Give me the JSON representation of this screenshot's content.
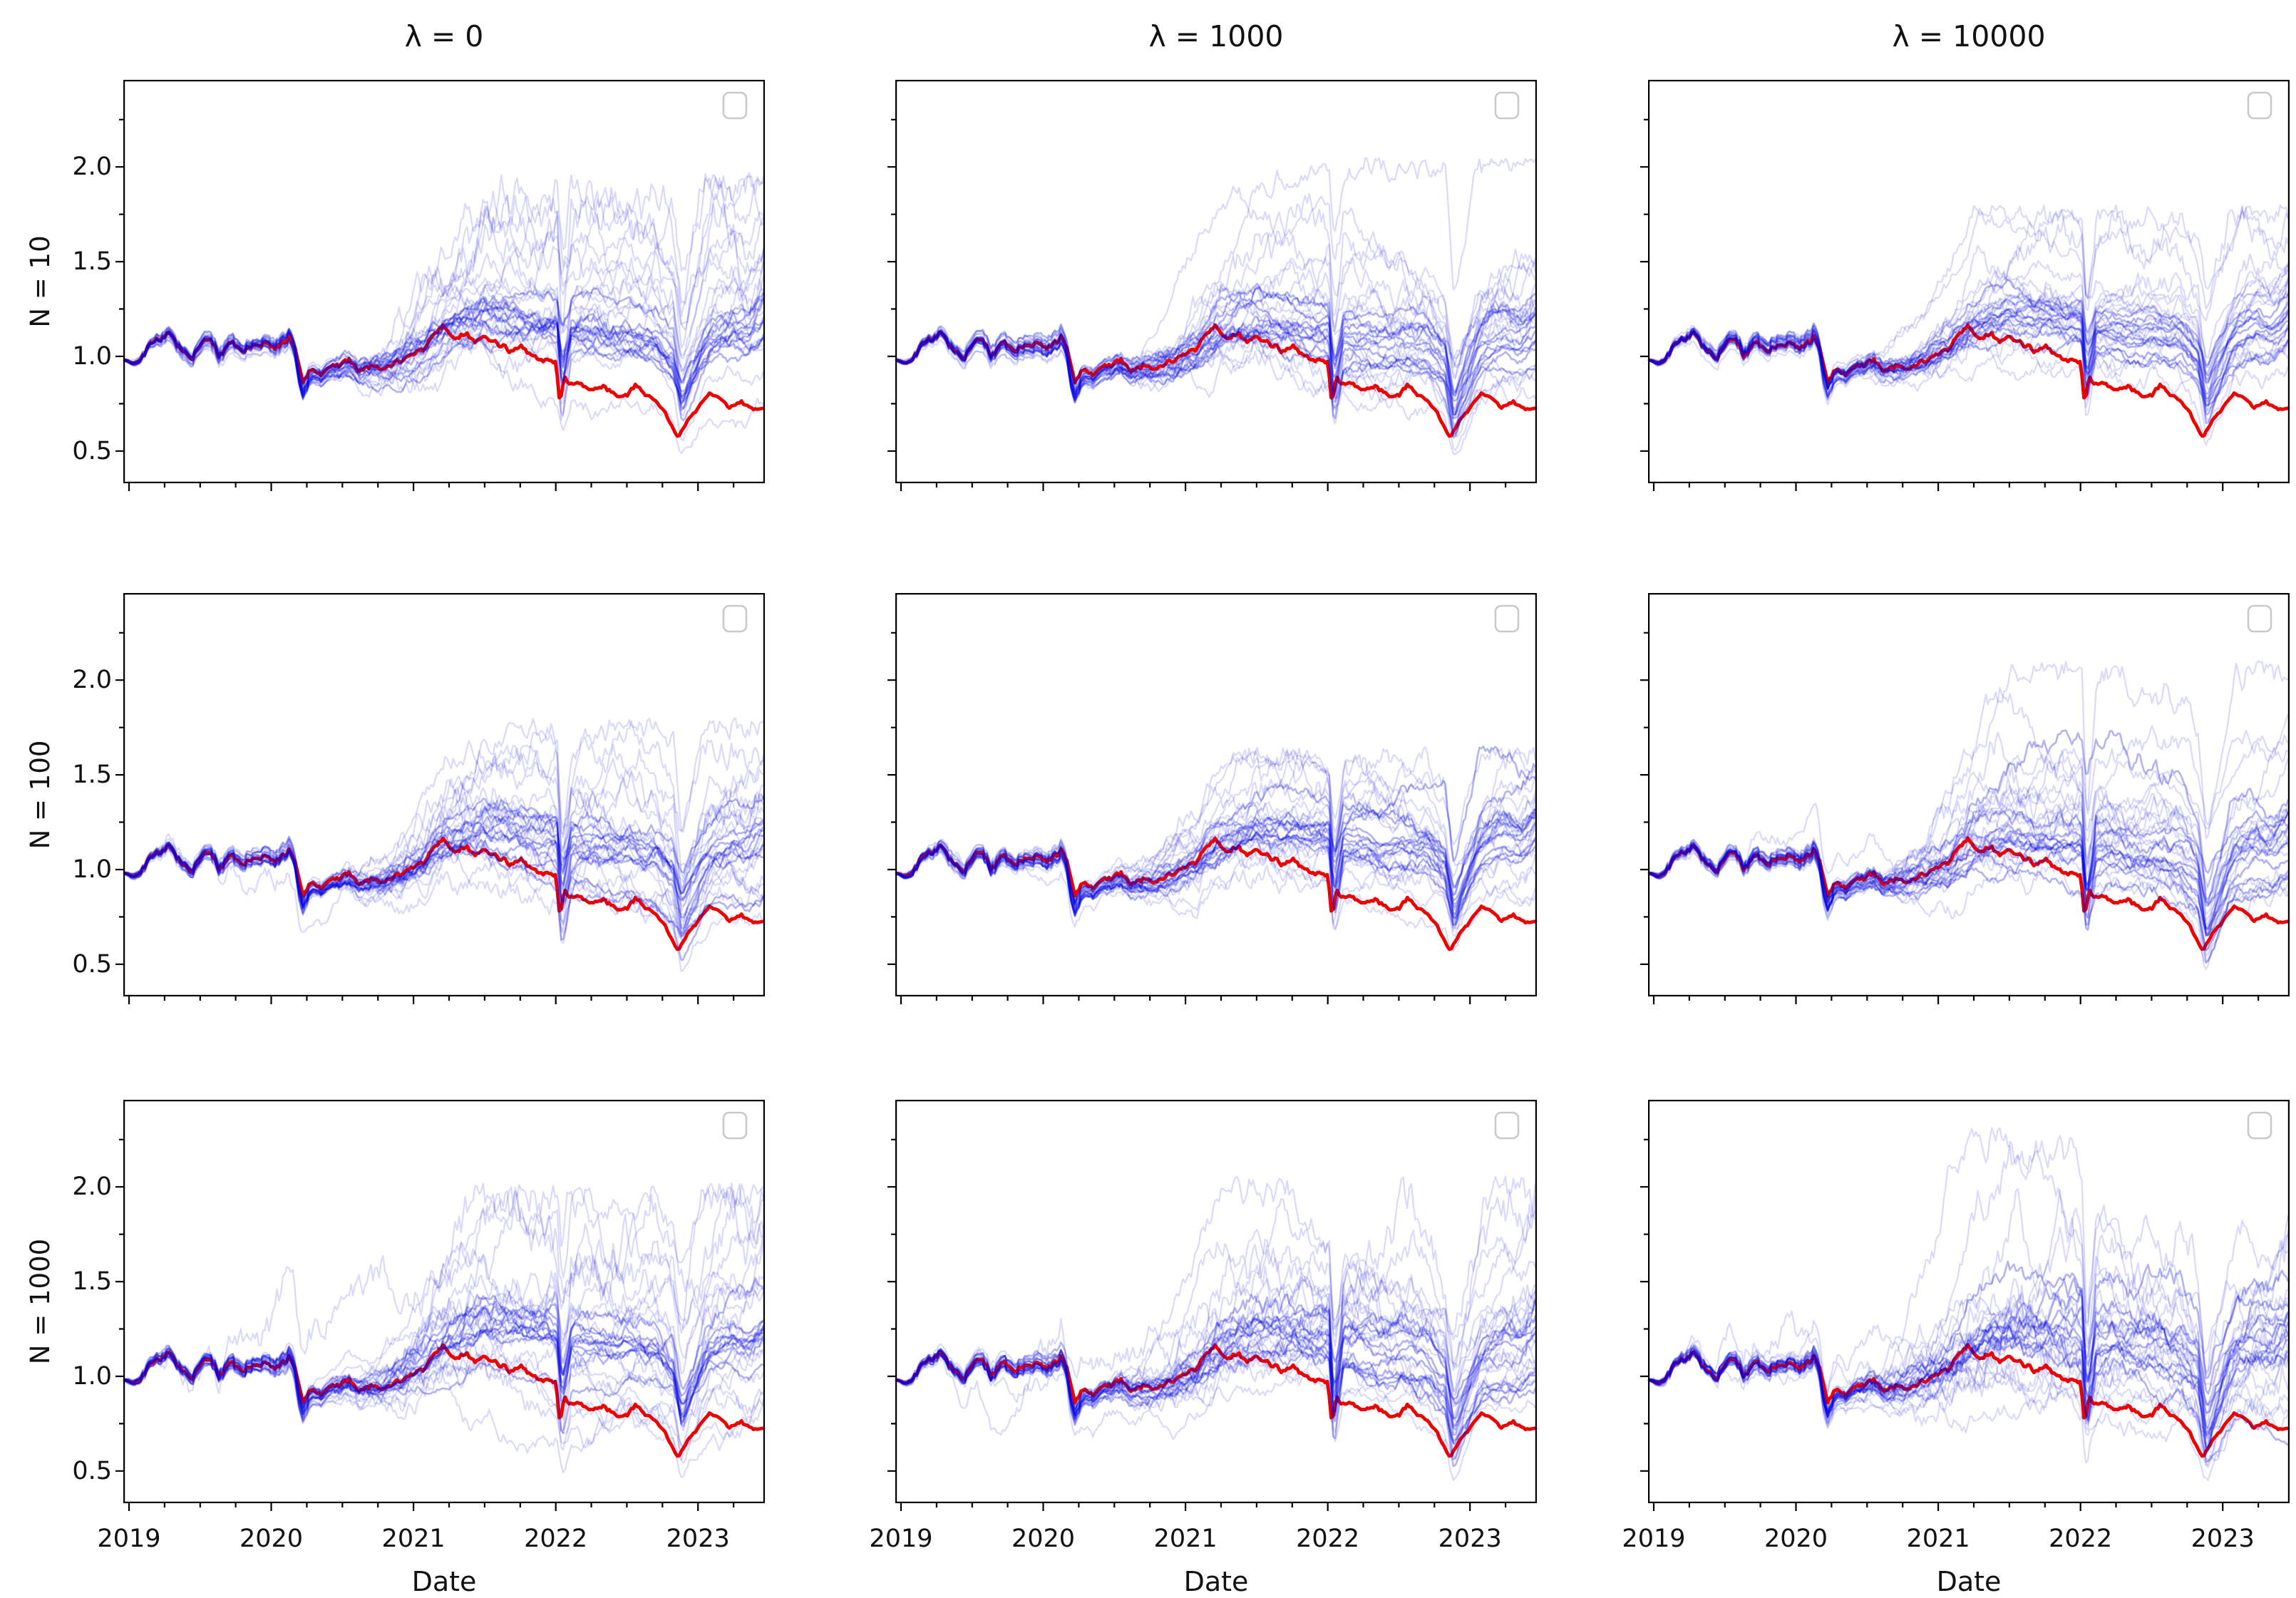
{
  "figure": {
    "background": "#ffffff",
    "grid": "3 rows x 3 columns of line plots, shared axes, empty legend box in each panel top-right"
  },
  "chart_data": {
    "type": "line",
    "xlabel": "Date",
    "x_ticks": [
      2019,
      2020,
      2021,
      2022,
      2023
    ],
    "y_ticks": [
      0.5,
      1.0,
      1.5,
      2.0
    ],
    "xlim": [
      2018.96,
      2023.47
    ],
    "ylim": [
      0.33,
      2.46
    ],
    "x_minor_tick_step": 0.25,
    "y_minor_ticks": [
      0.75,
      1.25,
      1.75,
      2.25
    ],
    "columns": [
      {
        "title": "λ = 0",
        "lambda": 0
      },
      {
        "title": "λ = 1000",
        "lambda": 1000
      },
      {
        "title": "λ = 10000",
        "lambda": 10000
      }
    ],
    "rows": [
      {
        "label": "N = 10",
        "n": 10
      },
      {
        "label": "N = 100",
        "n": 100
      },
      {
        "label": "N = 1000",
        "n": 1000
      }
    ],
    "legend": {
      "visible": true,
      "entries": []
    },
    "benchmark": {
      "name": "benchmark path (thick red line, identical in all 9 panels)",
      "color": "#ee0000",
      "linewidth": 4.8,
      "texture_seed": 901,
      "x": [
        2018.97,
        2019.06,
        2019.15,
        2019.28,
        2019.38,
        2019.45,
        2019.55,
        2019.63,
        2019.72,
        2019.8,
        2019.88,
        2019.96,
        2020.05,
        2020.13,
        2020.17,
        2020.22,
        2020.27,
        2020.35,
        2020.45,
        2020.55,
        2020.62,
        2020.7,
        2020.78,
        2020.88,
        2020.96,
        2021.05,
        2021.13,
        2021.2,
        2021.28,
        2021.35,
        2021.45,
        2021.52,
        2021.6,
        2021.68,
        2021.76,
        2021.84,
        2021.92,
        2022.0,
        2022.03,
        2022.06,
        2022.1,
        2022.18,
        2022.26,
        2022.34,
        2022.42,
        2022.5,
        2022.56,
        2022.63,
        2022.7,
        2022.76,
        2022.82,
        2022.86,
        2022.92,
        2023.0,
        2023.08,
        2023.14,
        2023.22,
        2023.3,
        2023.38,
        2023.46
      ],
      "y": [
        0.985,
        0.95,
        1.06,
        1.12,
        1.03,
        1.0,
        1.1,
        1.01,
        1.07,
        1.02,
        1.05,
        1.08,
        1.06,
        1.11,
        1.05,
        0.86,
        0.94,
        0.92,
        0.95,
        0.97,
        0.92,
        0.95,
        0.93,
        0.98,
        1.0,
        1.04,
        1.09,
        1.15,
        1.1,
        1.12,
        1.08,
        1.1,
        1.07,
        1.04,
        1.06,
        1.02,
        1.0,
        0.96,
        0.74,
        0.9,
        0.86,
        0.84,
        0.81,
        0.85,
        0.8,
        0.78,
        0.84,
        0.8,
        0.76,
        0.72,
        0.63,
        0.575,
        0.65,
        0.72,
        0.8,
        0.78,
        0.73,
        0.77,
        0.73,
        0.72
      ]
    },
    "ensemble": {
      "name": "simulated portfolio paths (translucent blue lines)",
      "color": "#0000e0",
      "paths_per_panel": 30,
      "opacity_loose": 0.15,
      "opacity_core": 0.3,
      "behavior": "paths hug the benchmark tightly through 2019 - early 2020, then fan out; bundle median drifts to ~1.1-1.25 while benchmark declines to ~0.72",
      "median_x": [
        2020.3,
        2020.5,
        2020.7,
        2020.9,
        2021.1,
        2021.3,
        2021.5,
        2021.7,
        2021.9,
        2022.0,
        2022.05,
        2022.12,
        2022.3,
        2022.5,
        2022.7,
        2022.84,
        2022.89,
        2022.96,
        2023.1,
        2023.25,
        2023.35,
        2023.46
      ],
      "median_y": [
        0.93,
        0.96,
        0.95,
        1.0,
        1.08,
        1.2,
        1.24,
        1.23,
        1.21,
        1.18,
        1.1,
        1.14,
        1.12,
        1.1,
        1.08,
        0.97,
        0.92,
        0.99,
        1.1,
        1.16,
        1.13,
        1.2
      ]
    },
    "shocks": [
      {
        "t": 2020.16,
        "down": 3,
        "rec": 8,
        "dmin": 0.02,
        "dmax": 0.12,
        "residual": 0.3,
        "note": "early-2020 crash, all paths dip with benchmark"
      },
      {
        "t": 2022.02,
        "down": 2,
        "rec": 4,
        "dmin": 0.05,
        "dmax": 0.28,
        "residual": 0.05,
        "note": "sharp synchronized V-dip at start of 2022"
      },
      {
        "t": 2022.84,
        "down": 4,
        "rec": 12,
        "dmin": 0.05,
        "dmax": 0.3,
        "residual": 0.12,
        "note": "deep synchronized trough late 2022 (benchmark bottoms at ~0.57)"
      }
    ],
    "panels": [
      {
        "id": "r0c0",
        "row_label": "N = 10",
        "col_title": "λ = 0",
        "seed": 11,
        "sigma": 0.02,
        "drift": 0.0004,
        "out_drift": 0.005,
        "peak_a": 2023.46,
        "peak_b": 2023.0,
        "fade": 0.0003,
        "cap": 1.97,
        "shock_mul": 1.0,
        "early_paths": 0,
        "envelope_max": 1.95,
        "envelope_max_t": 2023.4
      },
      {
        "id": "r0c1",
        "row_label": "N = 10",
        "col_title": "λ = 1000",
        "seed": 22,
        "sigma": 0.017,
        "drift": 0.0004,
        "out_drift": 0.0105,
        "peak_a": 2021.35,
        "peak_b": 2023.3,
        "fade": 0.0,
        "cap": 2.05,
        "shock_mul": 1.05,
        "early_paths": 0,
        "envelope_max": 2.0,
        "envelope_max_t": 2021.4
      },
      {
        "id": "r0c2",
        "row_label": "N = 10",
        "col_title": "λ = 10000",
        "seed": 33,
        "sigma": 0.015,
        "drift": 0.0004,
        "out_drift": 0.009,
        "peak_a": 2021.3,
        "peak_b": 2023.2,
        "fade": -0.0008,
        "cap": 1.8,
        "shock_mul": 1.0,
        "early_paths": 0,
        "envelope_max": 1.75,
        "envelope_max_t": 2021.3
      },
      {
        "id": "r1c0",
        "row_label": "N = 100",
        "col_title": "λ = 0",
        "seed": 44,
        "sigma": 0.02,
        "drift": 0.0004,
        "out_drift": 0.005,
        "peak_a": 2023.46,
        "peak_b": 2021.6,
        "fade": 0.0003,
        "cap": 1.8,
        "shock_mul": 1.0,
        "early_paths": 1,
        "envelope_max": 1.78,
        "envelope_max_t": 2023.1
      },
      {
        "id": "r1c1",
        "row_label": "N = 100",
        "col_title": "λ = 1000",
        "seed": 55,
        "sigma": 0.017,
        "drift": 0.0004,
        "out_drift": 0.006,
        "peak_a": 2021.6,
        "peak_b": 2023.3,
        "fade": 0.0,
        "cap": 1.65,
        "shock_mul": 1.0,
        "early_paths": 1,
        "envelope_max": 1.62,
        "envelope_max_t": 2021.5
      },
      {
        "id": "r1c2",
        "row_label": "N = 100",
        "col_title": "λ = 10000",
        "seed": 66,
        "sigma": 0.021,
        "drift": 0.0004,
        "out_drift": 0.009,
        "peak_a": 2021.45,
        "peak_b": 2023.25,
        "fade": -0.0004,
        "cap": 2.1,
        "shock_mul": 1.15,
        "early_paths": 1,
        "envelope_max": 2.05,
        "envelope_max_t": 2021.4
      },
      {
        "id": "r2c0",
        "row_label": "N = 1000",
        "col_title": "λ = 0",
        "seed": 77,
        "sigma": 0.021,
        "drift": 0.0004,
        "out_drift": 0.006,
        "peak_a": 2023.46,
        "peak_b": 2021.5,
        "fade": 0.0003,
        "cap": 2.02,
        "shock_mul": 1.0,
        "early_paths": 2,
        "envelope_max": 2.0,
        "envelope_max_t": 2023.3
      },
      {
        "id": "r2c1",
        "row_label": "N = 1000",
        "col_title": "λ = 1000",
        "seed": 88,
        "sigma": 0.022,
        "drift": 0.0004,
        "out_drift": 0.0105,
        "peak_a": 2021.35,
        "peak_b": 2021.75,
        "fade": -0.0004,
        "cap": 2.06,
        "shock_mul": 1.15,
        "early_paths": 2,
        "envelope_max": 2.0,
        "envelope_max_t": 2021.35
      },
      {
        "id": "r2c2",
        "row_label": "N = 1000",
        "col_title": "λ = 10000",
        "seed": 99,
        "sigma": 0.026,
        "drift": 0.0004,
        "out_drift": 0.0125,
        "peak_a": 2021.4,
        "peak_b": 2021.8,
        "fade": -0.0004,
        "cap": 2.34,
        "shock_mul": 1.25,
        "early_paths": 3,
        "envelope_max": 2.3,
        "envelope_max_t": 2021.4
      }
    ]
  }
}
